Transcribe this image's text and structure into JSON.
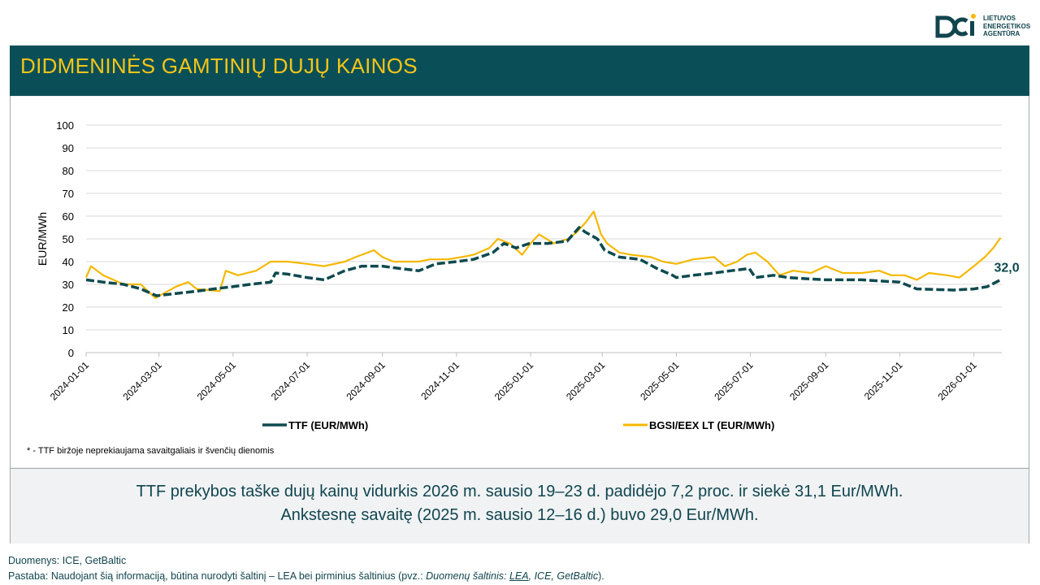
{
  "header": {
    "logo_text": [
      "LIETUVOS",
      "ENERGETIKOS",
      "AGENTŪRA"
    ],
    "title": "DIDMENINĖS GAMTINIŲ DUJŲ KAINOS"
  },
  "colors": {
    "ttf": "#0e4a4f",
    "bgsi": "#f5b800",
    "title_bg": "#0a4f57",
    "title_text": "#f5c518"
  },
  "chart_data": {
    "type": "line",
    "ylabel": "EUR/MWh",
    "ylim": [
      0,
      100
    ],
    "yticks": [
      0,
      10,
      20,
      30,
      40,
      50,
      60,
      70,
      80,
      90,
      100
    ],
    "xlim": [
      "2024-01-01",
      "2026-01-24"
    ],
    "xticks": [
      "2024-01-01",
      "2024-03-01",
      "2024-05-01",
      "2024-07-01",
      "2024-09-01",
      "2024-11-01",
      "2025-01-01",
      "2025-03-01",
      "2025-05-01",
      "2025-07-01",
      "2025-09-01",
      "2025-11-01",
      "2026-01-01"
    ],
    "legend": {
      "position": "bottom"
    },
    "grid": "horizontal",
    "end_label": "32,0",
    "series": [
      {
        "name": "TTF (EUR/MWh)",
        "style": "dashed",
        "color": "#0e4a4f",
        "points": [
          [
            "2024-01-01",
            32
          ],
          [
            "2024-01-15",
            31
          ],
          [
            "2024-02-01",
            30
          ],
          [
            "2024-02-15",
            28
          ],
          [
            "2024-02-28",
            25
          ],
          [
            "2024-03-15",
            26
          ],
          [
            "2024-04-01",
            27
          ],
          [
            "2024-04-15",
            28
          ],
          [
            "2024-05-01",
            29
          ],
          [
            "2024-05-15",
            30
          ],
          [
            "2024-06-01",
            31
          ],
          [
            "2024-06-05",
            35
          ],
          [
            "2024-06-15",
            34.5
          ],
          [
            "2024-07-01",
            33
          ],
          [
            "2024-07-15",
            32
          ],
          [
            "2024-08-01",
            36
          ],
          [
            "2024-08-15",
            38
          ],
          [
            "2024-09-01",
            38
          ],
          [
            "2024-09-15",
            37
          ],
          [
            "2024-10-01",
            36
          ],
          [
            "2024-10-15",
            39
          ],
          [
            "2024-11-01",
            40
          ],
          [
            "2024-11-15",
            41
          ],
          [
            "2024-12-01",
            44
          ],
          [
            "2024-12-10",
            48
          ],
          [
            "2024-12-20",
            46
          ],
          [
            "2024-12-31",
            48
          ],
          [
            "2025-01-15",
            48
          ],
          [
            "2025-01-31",
            49
          ],
          [
            "2025-02-10",
            55
          ],
          [
            "2025-02-15",
            53
          ],
          [
            "2025-02-25",
            50
          ],
          [
            "2025-03-03",
            45
          ],
          [
            "2025-03-15",
            42
          ],
          [
            "2025-04-01",
            41
          ],
          [
            "2025-04-15",
            37
          ],
          [
            "2025-04-28",
            34
          ],
          [
            "2025-05-01",
            33
          ],
          [
            "2025-05-15",
            34
          ],
          [
            "2025-06-01",
            35
          ],
          [
            "2025-06-15",
            36
          ],
          [
            "2025-06-30",
            37
          ],
          [
            "2025-07-05",
            33
          ],
          [
            "2025-07-20",
            34
          ],
          [
            "2025-08-01",
            33
          ],
          [
            "2025-08-15",
            32.5
          ],
          [
            "2025-09-01",
            32
          ],
          [
            "2025-10-01",
            32
          ],
          [
            "2025-10-15",
            31.5
          ],
          [
            "2025-11-01",
            31
          ],
          [
            "2025-11-15",
            28
          ],
          [
            "2025-12-15",
            27.5
          ],
          [
            "2026-01-01",
            28
          ],
          [
            "2026-01-12",
            29
          ],
          [
            "2026-01-23",
            32
          ]
        ]
      },
      {
        "name": "BGSI/EEX LT (EUR/MWh)",
        "style": "solid",
        "color": "#f5b800",
        "points": [
          [
            "2024-01-01",
            33
          ],
          [
            "2024-01-05",
            38
          ],
          [
            "2024-01-15",
            34
          ],
          [
            "2024-02-01",
            30
          ],
          [
            "2024-02-15",
            30
          ],
          [
            "2024-02-27",
            24
          ],
          [
            "2024-03-15",
            29
          ],
          [
            "2024-03-25",
            31
          ],
          [
            "2024-04-01",
            28
          ],
          [
            "2024-04-20",
            27
          ],
          [
            "2024-04-25",
            36
          ],
          [
            "2024-05-05",
            34
          ],
          [
            "2024-05-20",
            36
          ],
          [
            "2024-06-01",
            40
          ],
          [
            "2024-06-15",
            40
          ],
          [
            "2024-07-01",
            39
          ],
          [
            "2024-07-15",
            38
          ],
          [
            "2024-08-01",
            40
          ],
          [
            "2024-08-10",
            42
          ],
          [
            "2024-08-25",
            45
          ],
          [
            "2024-09-01",
            42
          ],
          [
            "2024-09-10",
            40
          ],
          [
            "2024-10-01",
            40
          ],
          [
            "2024-10-10",
            41
          ],
          [
            "2024-10-25",
            41
          ],
          [
            "2024-11-05",
            42
          ],
          [
            "2024-11-15",
            43
          ],
          [
            "2024-11-28",
            46
          ],
          [
            "2024-12-05",
            50
          ],
          [
            "2024-12-15",
            48
          ],
          [
            "2024-12-25",
            43
          ],
          [
            "2025-01-01",
            48
          ],
          [
            "2025-01-08",
            52
          ],
          [
            "2025-01-20",
            48
          ],
          [
            "2025-02-01",
            50
          ],
          [
            "2025-02-08",
            53
          ],
          [
            "2025-02-15",
            57
          ],
          [
            "2025-02-22",
            62
          ],
          [
            "2025-02-28",
            52
          ],
          [
            "2025-03-05",
            48
          ],
          [
            "2025-03-15",
            44
          ],
          [
            "2025-03-25",
            43
          ],
          [
            "2025-04-10",
            42
          ],
          [
            "2025-04-20",
            40
          ],
          [
            "2025-05-01",
            39
          ],
          [
            "2025-05-15",
            41
          ],
          [
            "2025-06-01",
            42
          ],
          [
            "2025-06-10",
            38
          ],
          [
            "2025-06-20",
            40
          ],
          [
            "2025-06-28",
            43
          ],
          [
            "2025-07-05",
            44
          ],
          [
            "2025-07-15",
            40
          ],
          [
            "2025-07-25",
            34
          ],
          [
            "2025-08-05",
            36
          ],
          [
            "2025-08-20",
            35
          ],
          [
            "2025-09-01",
            38
          ],
          [
            "2025-09-15",
            35
          ],
          [
            "2025-10-01",
            35
          ],
          [
            "2025-10-15",
            36
          ],
          [
            "2025-10-25",
            34
          ],
          [
            "2025-11-05",
            34
          ],
          [
            "2025-11-15",
            32
          ],
          [
            "2025-11-25",
            35
          ],
          [
            "2025-12-10",
            34
          ],
          [
            "2025-12-20",
            33
          ],
          [
            "2026-01-01",
            38
          ],
          [
            "2026-01-10",
            42
          ],
          [
            "2026-01-17",
            46
          ],
          [
            "2026-01-23",
            50.5
          ]
        ]
      }
    ]
  },
  "footnote": "* - TTF biržoje neprekiaujama savaitgaliais ir švenčių dienomis",
  "summary": {
    "line1": "TTF prekybos taške dujų kainų vidurkis 2026 m. sausio 19–23 d. padidėjo 7,2 proc. ir siekė 31,1 Eur/MWh.",
    "line2": "Ankstesnę savaitę (2025 m. sausio 12–16 d.) buvo 29,0 Eur/MWh."
  },
  "source": "Duomenys: ICE, GetBaltic",
  "note": {
    "prefix": "Pastaba: Naudojant šią informaciją, būtina nurodyti šaltinį – LEA bei pirminius šaltinius (pvz.: ",
    "italic1": "Duomenų šaltinis: ",
    "link": "LEA",
    "italic2": ", ICE, GetBaltic",
    "suffix": ")."
  }
}
